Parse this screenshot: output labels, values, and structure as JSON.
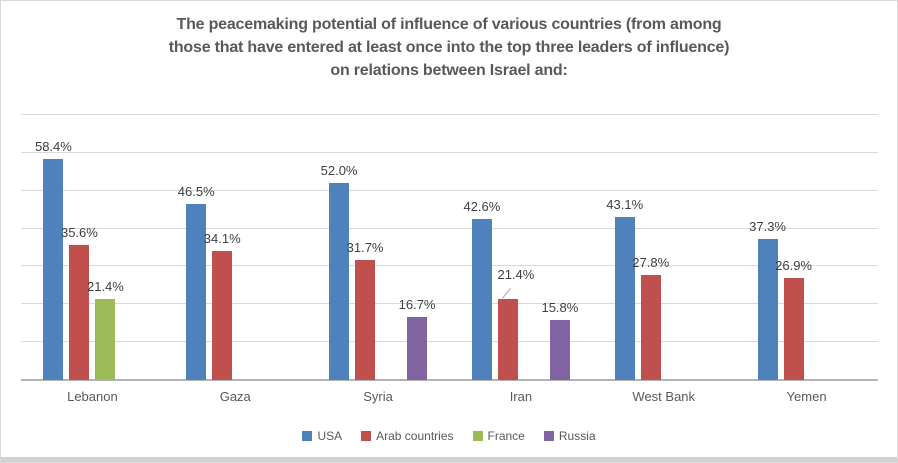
{
  "title": {
    "lines": [
      "The peacemaking potential of influence of various countries (from among",
      "those that have entered at least once into the top three leaders of influence)",
      "on relations between Israel and:"
    ]
  },
  "chart_data": {
    "type": "bar",
    "title": "The peacemaking potential of influence of various countries (from among those that have entered at least once into the top three leaders of influence) on relations between Israel and:",
    "categories": [
      "Lebanon",
      "Gaza",
      "Syria",
      "Iran",
      "West Bank",
      "Yemen"
    ],
    "series": [
      {
        "name": "USA",
        "color": "#4F81BD",
        "values": [
          58.4,
          46.5,
          52.0,
          42.6,
          43.1,
          37.3
        ]
      },
      {
        "name": "Arab countries",
        "color": "#C0504D",
        "values": [
          35.6,
          34.1,
          31.7,
          21.4,
          27.8,
          26.9
        ]
      },
      {
        "name": "France",
        "color": "#9BBB59",
        "values": [
          21.4,
          null,
          null,
          null,
          null,
          null
        ]
      },
      {
        "name": "Russia",
        "color": "#8064A2",
        "values": [
          null,
          null,
          16.7,
          15.8,
          null,
          null
        ]
      }
    ],
    "value_suffix": "%",
    "value_decimals": 1,
    "ylim": [
      0,
      70
    ],
    "gridline_step": 10,
    "grid": true,
    "grid_color": "#D9D9D9",
    "axis_color": "#B3B3B3",
    "xlabel": "",
    "ylabel": "",
    "legend_position": "bottom",
    "data_labels": true,
    "label_adjustments": [
      {
        "series": "Arab countries",
        "category": "Iran",
        "dx": 8,
        "dy": 12,
        "leader_line": true
      }
    ]
  }
}
